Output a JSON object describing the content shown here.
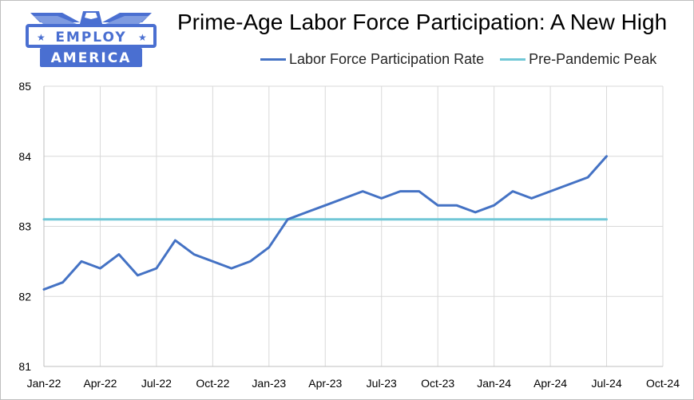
{
  "logo": {
    "top_text": "EMPLOY",
    "bottom_text": "AMERICA",
    "icon": "eagle-wings-logo",
    "color": "#4a6fd1"
  },
  "title": "Prime-Age Labor Force Participation: A New High",
  "chart_data": {
    "type": "line",
    "title": "Prime-Age Labor Force Participation: A New High",
    "xlabel": "",
    "ylabel": "",
    "x_tick_labels": [
      "Jan-22",
      "Apr-22",
      "Jul-22",
      "Oct-22",
      "Jan-23",
      "Apr-23",
      "Jul-23",
      "Oct-23",
      "Jan-24",
      "Apr-24",
      "Jul-24",
      "Oct-24"
    ],
    "y_tick_labels": [
      "81",
      "82",
      "83",
      "84",
      "85"
    ],
    "ylim": [
      81,
      85
    ],
    "grid": true,
    "legend_placement": "top",
    "months": [
      "2022-01",
      "2022-02",
      "2022-03",
      "2022-04",
      "2022-05",
      "2022-06",
      "2022-07",
      "2022-08",
      "2022-09",
      "2022-10",
      "2022-11",
      "2022-12",
      "2023-01",
      "2023-02",
      "2023-03",
      "2023-04",
      "2023-05",
      "2023-06",
      "2023-07",
      "2023-08",
      "2023-09",
      "2023-10",
      "2023-11",
      "2023-12",
      "2024-01",
      "2024-02",
      "2024-03",
      "2024-04",
      "2024-05",
      "2024-06",
      "2024-07"
    ],
    "series": [
      {
        "name": "Labor Force Participation Rate",
        "color": "#4472c4",
        "values": [
          82.1,
          82.2,
          82.5,
          82.4,
          82.6,
          82.3,
          82.4,
          82.8,
          82.6,
          82.5,
          82.4,
          82.5,
          82.7,
          83.1,
          83.2,
          83.3,
          83.4,
          83.5,
          83.4,
          83.5,
          83.5,
          83.3,
          83.3,
          83.2,
          83.3,
          83.5,
          83.4,
          83.5,
          83.6,
          83.7,
          84.0
        ]
      },
      {
        "name": "Pre-Pandemic Peak",
        "color": "#70c7d6",
        "values": [
          83.1,
          83.1,
          83.1,
          83.1,
          83.1,
          83.1,
          83.1,
          83.1,
          83.1,
          83.1,
          83.1,
          83.1,
          83.1,
          83.1,
          83.1,
          83.1,
          83.1,
          83.1,
          83.1,
          83.1,
          83.1,
          83.1,
          83.1,
          83.1,
          83.1,
          83.1,
          83.1,
          83.1,
          83.1,
          83.1,
          83.1
        ]
      }
    ]
  }
}
